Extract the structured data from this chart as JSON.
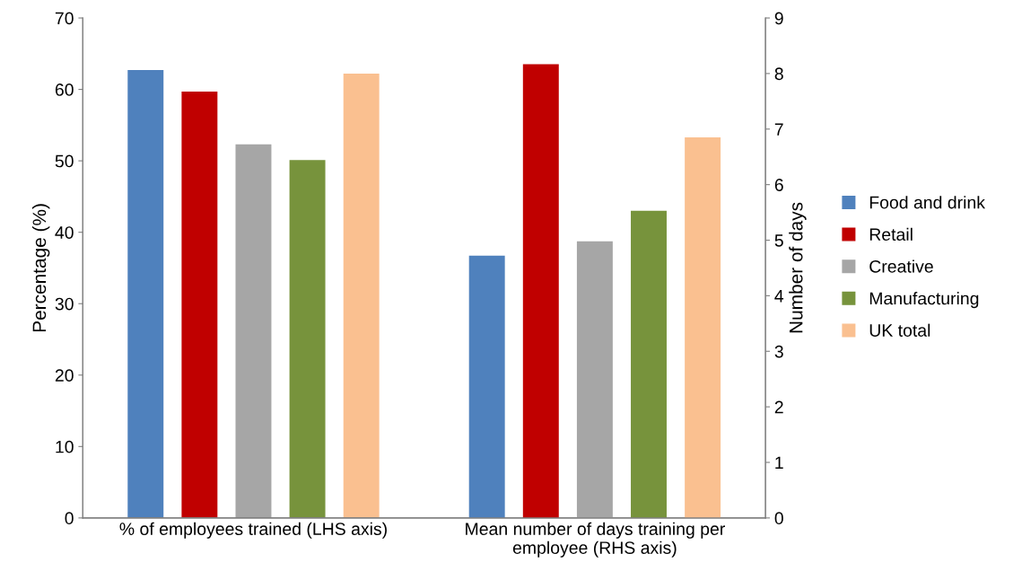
{
  "chart_data": {
    "type": "bar",
    "categories": [
      "% of employees trained (LHS axis)",
      "Mean number of days training per\nemployee (RHS axis)"
    ],
    "ylabel": "Percentage (%)",
    "y2label": "Number of days",
    "ylim": [
      0,
      70
    ],
    "yticks": [
      0,
      10,
      20,
      30,
      40,
      50,
      60,
      70
    ],
    "y2lim": [
      0,
      9
    ],
    "y2ticks": [
      0,
      1,
      2,
      3,
      4,
      5,
      6,
      7,
      8,
      9
    ],
    "grid": false,
    "legend": "right",
    "series": [
      {
        "name": "Food and drink",
        "color": "#4f81bd",
        "values": [
          62.7,
          null
        ]
      },
      {
        "name": "Retail",
        "color": "#c00000",
        "values": [
          59.7,
          null
        ]
      },
      {
        "name": "Creative",
        "color": "#a6a6a6",
        "values": [
          52.3,
          null
        ]
      },
      {
        "name": "Manufacturing",
        "color": "#77933c",
        "values": [
          50.1,
          null
        ]
      },
      {
        "name": "UK total",
        "color": "#fac090",
        "values": [
          62.2,
          null
        ]
      },
      {
        "color": "#4f81bd",
        "values": [
          null,
          4.72
        ],
        "axis": "y2"
      },
      {
        "color": "#c00000",
        "values": [
          null,
          8.17
        ],
        "axis": "y2"
      },
      {
        "color": "#a6a6a6",
        "values": [
          null,
          4.98
        ],
        "axis": "y2"
      },
      {
        "color": "#77933c",
        "values": [
          null,
          5.53
        ],
        "axis": "y2"
      },
      {
        "color": "#fac090",
        "values": [
          null,
          6.85
        ],
        "axis": "y2"
      }
    ]
  }
}
